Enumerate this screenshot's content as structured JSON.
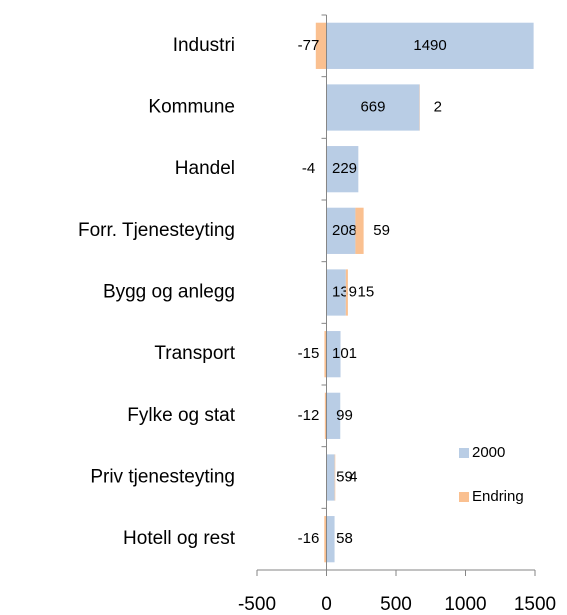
{
  "chart_data": {
    "type": "bar",
    "orientation": "horizontal",
    "stacked": true,
    "categories": [
      "Industri",
      "Kommune",
      "Handel",
      "Forr. Tjenesteyting",
      "Bygg og anlegg",
      "Transport",
      "Fylke og stat",
      "Priv tjenesteyting",
      "Hotell og rest"
    ],
    "series": [
      {
        "name": "2000",
        "color": "#b9cde5",
        "values": [
          1490,
          669,
          229,
          208,
          139,
          101,
          99,
          59,
          58
        ]
      },
      {
        "name": "Endring",
        "color": "#fac090",
        "values": [
          -77,
          2,
          -4,
          59,
          15,
          -15,
          -12,
          4,
          -16
        ]
      }
    ],
    "xlim": [
      -500,
      1500
    ],
    "xticks": [
      -500,
      0,
      500,
      1000,
      1500
    ],
    "grid": false,
    "legend": "right"
  }
}
